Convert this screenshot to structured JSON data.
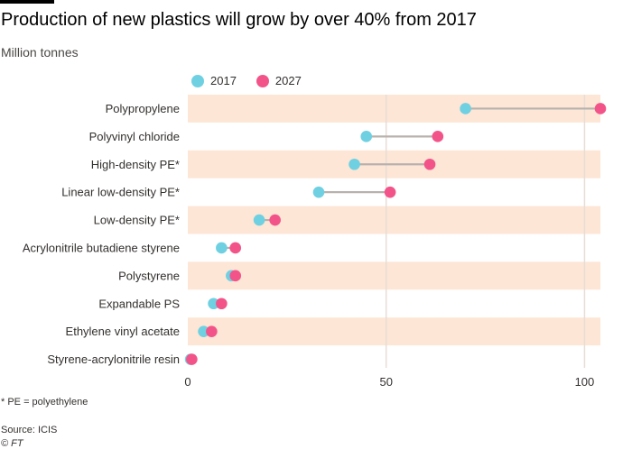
{
  "header": {
    "title": "Production of new plastics will grow by over 40% from 2017",
    "subtitle": "Million tonnes"
  },
  "footer": {
    "footnote": "* PE = polyethylene",
    "source": "Source: ICIS",
    "copyright": "© FT"
  },
  "colors": {
    "series_2017": "#6fd0e2",
    "series_2027": "#f2548a",
    "band": "#fde6d5",
    "connector": "#b7b2ae",
    "gridline": "#e7ddd6"
  },
  "chart_data": {
    "type": "dot-plot",
    "title": "Production of new plastics will grow by over 40% from 2017",
    "subtitle": "Million tonnes",
    "categories": [
      "Polypropylene",
      "Polyvinyl chloride",
      "High-density PE*",
      "Linear low-density PE*",
      "Low-density PE*",
      "Acrylonitrile butadiene styrene",
      "Polystyrene",
      "Expandable PS",
      "Ethylene vinyl acetate",
      "Styrene-acrylonitrile resin"
    ],
    "series": [
      {
        "name": "2017",
        "values": [
          70,
          45,
          42,
          33,
          18,
          8.5,
          11,
          6.5,
          4,
          0.7
        ]
      },
      {
        "name": "2027",
        "values": [
          104,
          63,
          61,
          51,
          22,
          12,
          12,
          8.5,
          6,
          1
        ]
      }
    ],
    "xlim": [
      0,
      104
    ],
    "xticks": [
      0,
      50,
      100
    ],
    "grid": true,
    "legend": "top"
  }
}
